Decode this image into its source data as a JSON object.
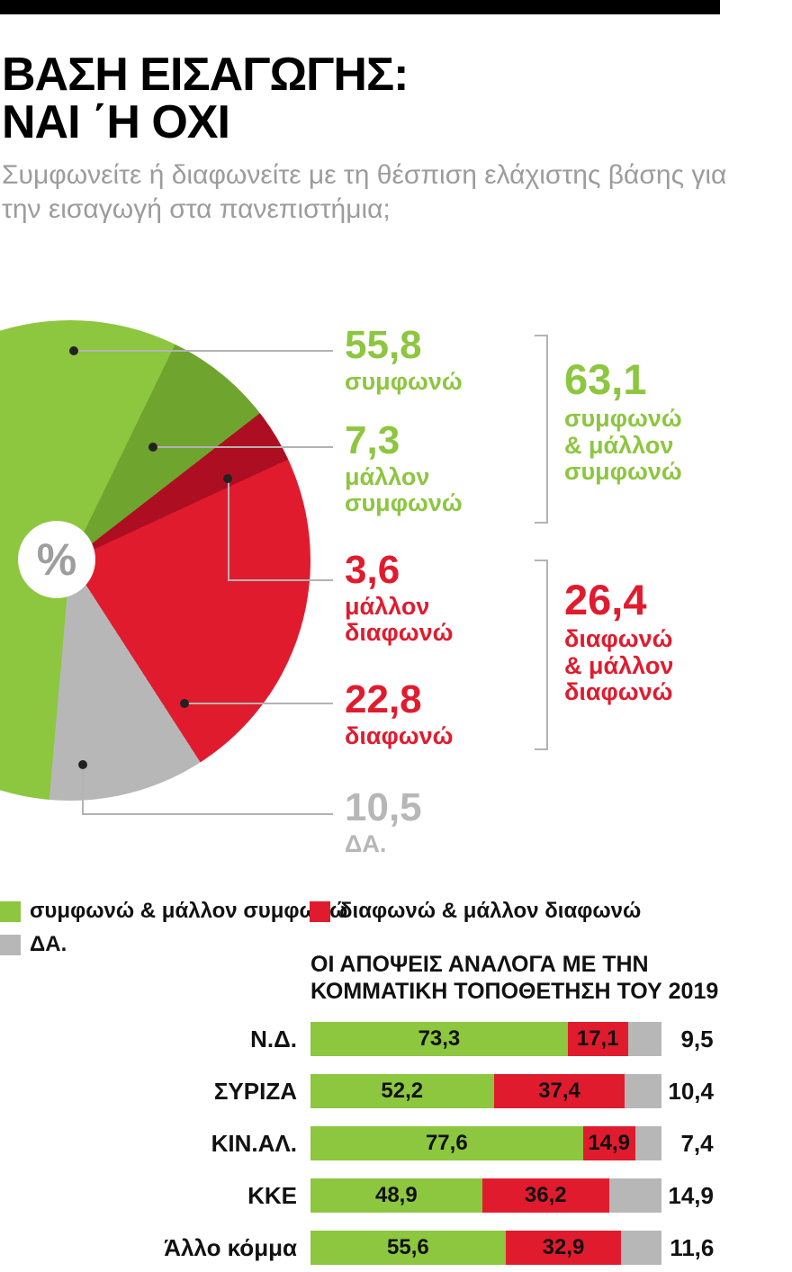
{
  "header": {
    "title_line1": "ΒΑΣΗ ΕΙΣΑΓΩΓΗΣ:",
    "title_line2": "ΝΑΙ ΄Η ΟΧΙ",
    "subtitle": "Συμφωνείτε ή διαφωνείτε με τη θέσπιση ελάχιστης βάσης για την εισαγωγή στα πανεπιστήμια;"
  },
  "colors": {
    "green": "#8dc63f",
    "dark_green": "#6fa42e",
    "red": "#e11b2e",
    "dark_red": "#ae0e21",
    "gray": "#b7b7b7",
    "subtitle_gray": "#9c9c9c",
    "line_gray": "#b3b3b3",
    "percent_gray": "#9e9e9e"
  },
  "chart_data": [
    {
      "type": "pie",
      "center_label": "%",
      "start_angle_deg": 185,
      "slices": [
        {
          "label": "συμφωνώ",
          "value": 55.8,
          "display": "55,8",
          "color_key": "green"
        },
        {
          "label": "μάλλον συμφωνώ",
          "value": 7.3,
          "display": "7,3",
          "color_key": "dark_green"
        },
        {
          "label": "μάλλον διαφωνώ",
          "value": 3.6,
          "display": "3,6",
          "color_key": "dark_red"
        },
        {
          "label": "διαφωνώ",
          "value": 22.8,
          "display": "22,8",
          "color_key": "red"
        },
        {
          "label": "ΔΑ.",
          "value": 10.5,
          "display": "10,5",
          "color_key": "gray"
        }
      ],
      "groups": [
        {
          "display": "63,1",
          "value": 63.1,
          "label": "συμφωνώ\n& μάλλον\nσυμφωνώ",
          "color_key": "green"
        },
        {
          "display": "26,4",
          "value": 26.4,
          "label": "διαφωνώ\n& μάλλον\nδιαφωνώ",
          "color_key": "red"
        }
      ]
    },
    {
      "type": "bar",
      "orientation": "horizontal-stacked",
      "title": "ΟΙ ΑΠΟΨΕΙΣ ΑΝΑΛΟΓΑ ΜΕ ΤΗΝ\nΚΟΜΜΑΤΙΚΗ ΤΟΠΟΘΕΤΗΣΗ ΤΟΥ 2019",
      "categories": [
        "Ν.Δ.",
        "ΣΥΡΙΖΑ",
        "ΚΙΝ.ΑΛ.",
        "ΚΚΕ",
        "Άλλο κόμμα"
      ],
      "xlim": [
        0,
        100
      ],
      "series": [
        {
          "name": "συμφωνώ & μάλλον συμφωνώ",
          "color_key": "green",
          "values": [
            73.3,
            52.2,
            77.6,
            48.9,
            55.6
          ],
          "display": [
            "73,3",
            "52,2",
            "77,6",
            "48,9",
            "55,6"
          ]
        },
        {
          "name": "διαφωνώ & μάλλον διαφωνώ",
          "color_key": "red",
          "values": [
            17.1,
            37.4,
            14.9,
            36.2,
            32.9
          ],
          "display": [
            "17,1",
            "37,4",
            "14,9",
            "36,2",
            "32,9"
          ]
        },
        {
          "name": "ΔΑ.",
          "color_key": "gray",
          "values": [
            9.5,
            10.4,
            7.4,
            14.9,
            11.6
          ],
          "display": [
            "9,5",
            "10,4",
            "7,4",
            "14,9",
            "11,6"
          ]
        }
      ]
    }
  ],
  "legend": {
    "items": [
      {
        "label": "συμφωνώ & μάλλον συμφωνώ",
        "color_key": "green"
      },
      {
        "label": "διαφωνώ & μάλλον διαφωνώ",
        "color_key": "red"
      },
      {
        "label": "ΔΑ.",
        "color_key": "gray"
      }
    ]
  }
}
